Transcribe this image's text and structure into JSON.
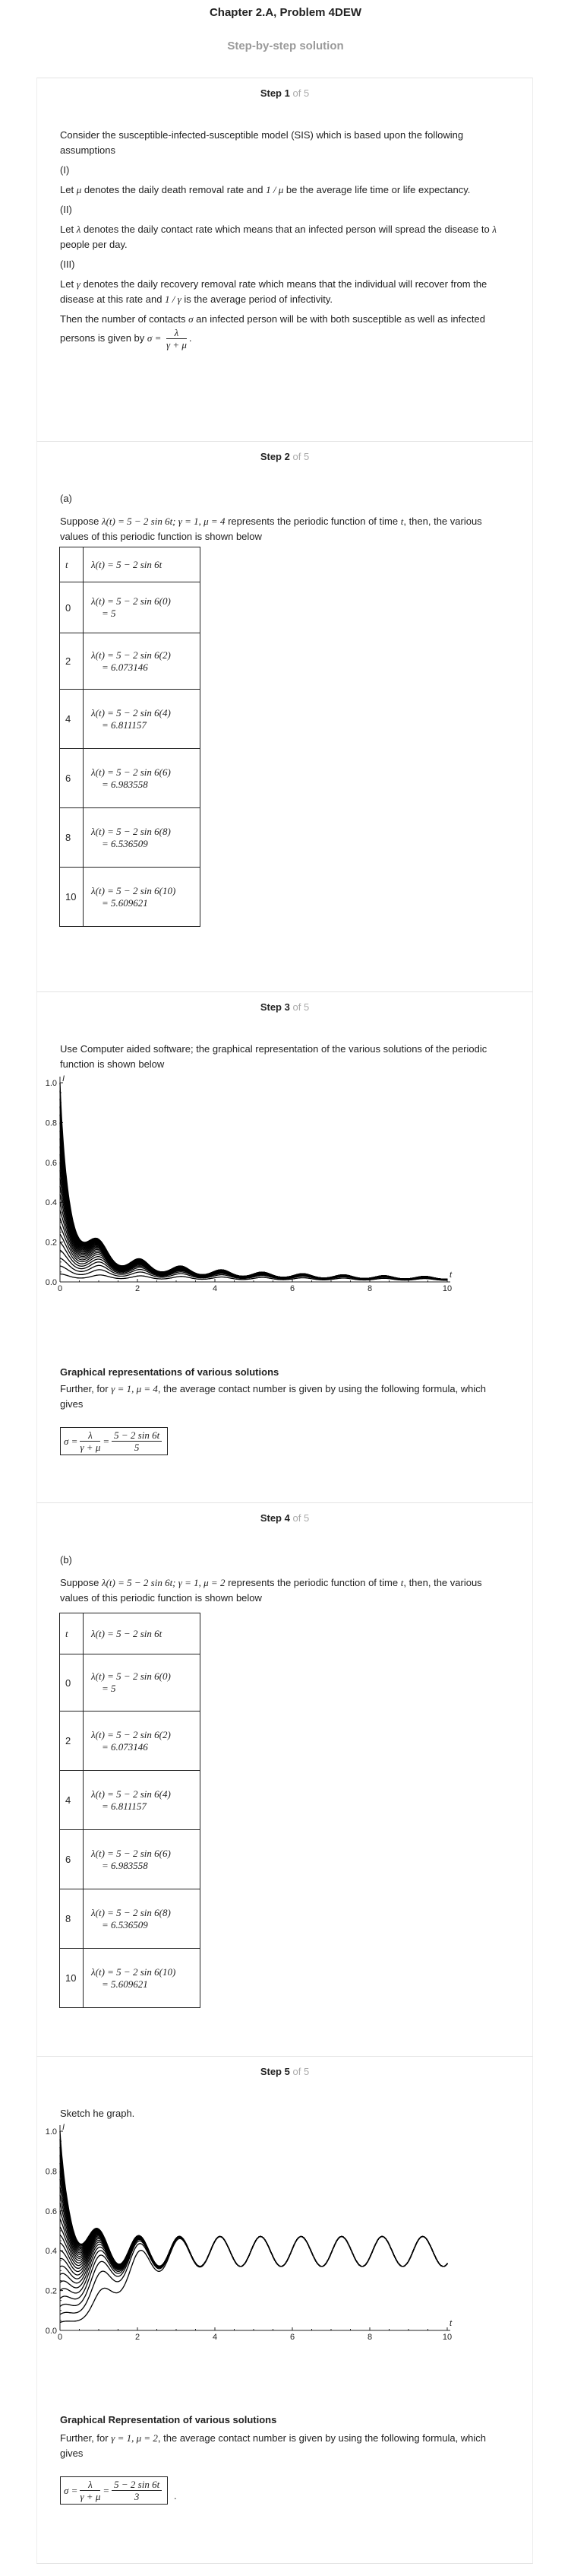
{
  "header": {
    "title": "Chapter 2.A, Problem 4DEW",
    "subtitle": "Step-by-step solution"
  },
  "steps": [
    {
      "word": "Step",
      "num": "1",
      "of": "of 5"
    },
    {
      "word": "Step",
      "num": "2",
      "of": "of 5"
    },
    {
      "word": "Step",
      "num": "3",
      "of": "of 5"
    },
    {
      "word": "Step",
      "num": "4",
      "of": "of 5"
    },
    {
      "word": "Step",
      "num": "5",
      "of": "of 5"
    }
  ],
  "step1": {
    "intro": "Consider the susceptible-infected-susceptible model (SIS) which is based upon the following assumptions",
    "i": "(I)",
    "i_text_a": "Let",
    "i_sym": "μ",
    "i_text_b": "denotes the daily death removal rate and",
    "i_frac": "1 / μ",
    "i_text_c": "be the average life time or life expectancy.",
    "ii": "(II)",
    "ii_text_a": "Let",
    "ii_sym": "λ",
    "ii_text_b": "denotes the daily contact rate which means that an infected person will spread the disease to",
    "ii_sym2": "λ",
    "ii_text_c": "people per day.",
    "iii": "(III)",
    "iii_text_a": "Let",
    "iii_sym": "γ",
    "iii_text_b": "denotes the daily recovery removal rate which means that the individual will recover from the disease at this rate and",
    "iii_frac": "1 / γ",
    "iii_text_c": "is the average period of infectivity.",
    "contact_a": "Then the number of contacts",
    "contact_sym": "σ",
    "contact_b": "an infected person will be with both susceptible as well as infected persons is given by",
    "sigma_lhs": "σ =",
    "sigma_num": "λ",
    "sigma_den": "γ + μ"
  },
  "step2": {
    "part": "(a)",
    "suppose_a": "Suppose",
    "suppose_eq": "λ(t) = 5 − 2 sin 6t; γ = 1, μ = 4",
    "suppose_b": "represents the periodic function of time",
    "suppose_t": "t",
    "suppose_c": ", then, the various values of this periodic function is shown below",
    "table_head": [
      "t",
      "λ(t) = 5 − 2 sin 6t"
    ],
    "rows": [
      {
        "t": "0",
        "eq": "λ(t) = 5 − 2 sin 6(0)",
        "val": "= 5"
      },
      {
        "t": "2",
        "eq": "λ(t) = 5 − 2 sin 6(2)",
        "val": "= 6.073146"
      },
      {
        "t": "4",
        "eq": "λ(t) = 5 − 2 sin 6(4)",
        "val": "= 6.811157"
      },
      {
        "t": "6",
        "eq": "λ(t) = 5 − 2 sin 6(6)",
        "val": "= 6.983558"
      },
      {
        "t": "8",
        "eq": "λ(t) = 5 − 2 sin 6(8)",
        "val": "= 6.536509"
      },
      {
        "t": "10",
        "eq": "λ(t) = 5 − 2 sin 6(10)",
        "val": "= 5.609621"
      }
    ]
  },
  "step3": {
    "intro": "Use Computer aided software; the graphical representation of the various solutions of the periodic function is shown below",
    "caption": "Graphical representations of various solutions",
    "further_a": "Further, for",
    "further_eq": "γ = 1, μ = 4",
    "further_b": ", the average contact number is given by using the following formula, which gives",
    "f_lhs": "σ =",
    "f_num1": "λ",
    "f_den1": "γ + μ",
    "f_eq": "=",
    "f_num2": "5 − 2 sin 6t",
    "f_den2": "5"
  },
  "step4": {
    "part": "(b)",
    "suppose_a": "Suppose",
    "suppose_eq": "λ(t) = 5 − 2 sin 6t; γ = 1, μ = 2",
    "suppose_b": "represents the periodic function of time",
    "suppose_t": "t",
    "suppose_c": ", then, the various values of this periodic function is shown below",
    "table_head": [
      "t",
      "λ(t) = 5 − 2 sin 6t"
    ],
    "rows": [
      {
        "t": "0",
        "eq": "λ(t) = 5 − 2 sin 6(0)",
        "val": "= 5"
      },
      {
        "t": "2",
        "eq": "λ(t) = 5 − 2 sin 6(2)",
        "val": "= 6.073146"
      },
      {
        "t": "4",
        "eq": "λ(t) = 5 − 2 sin 6(4)",
        "val": "= 6.811157"
      },
      {
        "t": "6",
        "eq": "λ(t) = 5 − 2 sin 6(6)",
        "val": "= 6.983558"
      },
      {
        "t": "8",
        "eq": "λ(t) = 5 − 2 sin 6(8)",
        "val": "= 6.536509"
      },
      {
        "t": "10",
        "eq": "λ(t) = 5 − 2 sin 6(10)",
        "val": "= 5.609621"
      }
    ]
  },
  "step5": {
    "intro": "Sketch he graph.",
    "caption": "Graphical Representation of various solutions",
    "further_a": "Further, for",
    "further_eq": "γ = 1, μ = 2",
    "further_b": ", the average contact number is given by using the following formula, which gives",
    "f_lhs": "σ =",
    "f_num1": "λ",
    "f_den1": "γ + μ",
    "f_eq": "=",
    "f_num2": "5 − 2 sin 6t",
    "f_den2": "3",
    "f_end": "."
  },
  "chart_data": [
    {
      "type": "line",
      "axis_var_y": "I",
      "axis_var_x": "t",
      "xlim": [
        0,
        10
      ],
      "ylim": [
        0,
        1.0
      ],
      "x_ticks": [
        "0",
        "2",
        "4",
        "6",
        "8",
        "10"
      ],
      "y_ticks": [
        "0.0",
        "0.2",
        "0.4",
        "0.6",
        "0.8",
        "1.0"
      ],
      "initial_values": [
        0.04,
        0.08,
        0.12,
        0.16,
        0.2,
        0.24,
        0.28,
        0.32,
        0.36,
        0.4,
        0.44,
        0.48,
        0.52,
        0.56,
        0.6,
        0.64,
        0.68,
        0.72,
        0.76,
        0.8,
        0.84,
        0.88,
        0.92,
        0.96,
        1.0
      ],
      "params": {
        "gamma": 1,
        "mu": 4
      },
      "color": "#000000"
    },
    {
      "type": "line",
      "axis_var_y": "I",
      "axis_var_x": "t",
      "xlim": [
        0,
        10
      ],
      "ylim": [
        0,
        1.0
      ],
      "x_ticks": [
        "0",
        "2",
        "4",
        "6",
        "8",
        "10"
      ],
      "y_ticks": [
        "0.0",
        "0.2",
        "0.4",
        "0.6",
        "0.8",
        "1.0"
      ],
      "initial_values": [
        0.04,
        0.08,
        0.12,
        0.16,
        0.2,
        0.24,
        0.28,
        0.32,
        0.36,
        0.4,
        0.44,
        0.48,
        0.52,
        0.56,
        0.6,
        0.64,
        0.68,
        0.72,
        0.76,
        0.8,
        0.84,
        0.88,
        0.92,
        0.96,
        1.0
      ],
      "params": {
        "gamma": 1,
        "mu": 2
      },
      "color": "#000000"
    }
  ]
}
